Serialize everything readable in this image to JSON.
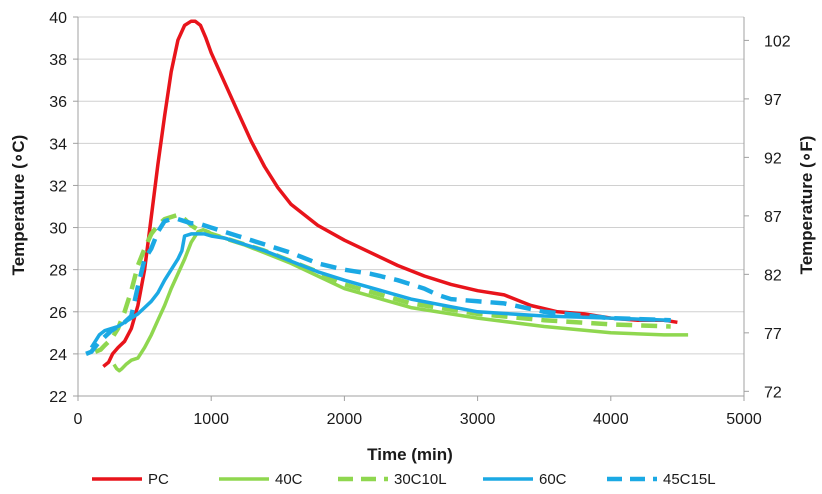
{
  "chart_data": {
    "type": "line",
    "xlabel": "Time (min)",
    "ylabel": "Temperature (∘C)",
    "y2label": "Temperature (∘F)",
    "xlim": [
      0,
      5000
    ],
    "ylim": [
      22,
      40
    ],
    "y2lim": [
      71.6,
      104
    ],
    "x_ticks": [
      0,
      1000,
      2000,
      3000,
      4000,
      5000
    ],
    "y_ticks": [
      22,
      24,
      26,
      28,
      30,
      32,
      34,
      36,
      38,
      40
    ],
    "y2_ticks": [
      72,
      77,
      82,
      87,
      92,
      97,
      102
    ],
    "grid": "horizontal",
    "legend_position": "bottom",
    "series": [
      {
        "name": "PC",
        "color": "#e8141b",
        "style": "solid",
        "x": [
          190,
          230,
          260,
          300,
          350,
          400,
          450,
          500,
          560,
          600,
          650,
          700,
          750,
          800,
          850,
          880,
          920,
          960,
          1000,
          1100,
          1200,
          1300,
          1400,
          1500,
          1600,
          1800,
          2000,
          2200,
          2400,
          2600,
          2800,
          3000,
          3200,
          3400,
          3600,
          3800,
          4000,
          4200,
          4400,
          4500
        ],
        "y": [
          23.4,
          23.6,
          24.0,
          24.3,
          24.6,
          25.2,
          26.3,
          28.0,
          31.0,
          33.0,
          35.3,
          37.4,
          38.9,
          39.6,
          39.8,
          39.8,
          39.6,
          39.0,
          38.3,
          36.9,
          35.5,
          34.1,
          32.9,
          31.9,
          31.1,
          30.1,
          29.4,
          28.8,
          28.2,
          27.7,
          27.3,
          27.0,
          26.8,
          26.3,
          26.0,
          25.9,
          25.7,
          25.6,
          25.6,
          25.5
        ]
      },
      {
        "name": "40C",
        "color": "#8fd74f",
        "style": "solid",
        "x": [
          270,
          290,
          310,
          330,
          360,
          400,
          450,
          500,
          550,
          600,
          650,
          700,
          750,
          800,
          850,
          900,
          940,
          980,
          1000,
          1200,
          1400,
          1600,
          1800,
          2000,
          2500,
          3000,
          3500,
          4000,
          4400,
          4580
        ],
        "y": [
          23.5,
          23.3,
          23.2,
          23.3,
          23.5,
          23.7,
          23.8,
          24.3,
          24.9,
          25.6,
          26.3,
          27.1,
          27.8,
          28.5,
          29.3,
          29.8,
          29.9,
          29.8,
          29.7,
          29.3,
          28.8,
          28.3,
          27.7,
          27.1,
          26.2,
          25.7,
          25.3,
          25.0,
          24.9,
          24.9
        ]
      },
      {
        "name": "30C10L",
        "color": "#8fd74f",
        "style": "dashed",
        "x": [
          130,
          170,
          200,
          250,
          300,
          350,
          400,
          450,
          500,
          550,
          600,
          650,
          700,
          750,
          800,
          850,
          900,
          950,
          1000,
          1200,
          1400,
          1600,
          1800,
          2000,
          2500,
          3000,
          3500,
          4000,
          4450
        ],
        "y": [
          24.1,
          24.2,
          24.4,
          24.7,
          25.2,
          26.0,
          27.0,
          28.2,
          29.0,
          29.7,
          30.1,
          30.4,
          30.5,
          30.6,
          30.4,
          30.1,
          29.9,
          29.8,
          29.7,
          29.3,
          28.9,
          28.4,
          27.9,
          27.3,
          26.4,
          25.9,
          25.6,
          25.4,
          25.3
        ]
      },
      {
        "name": "60C",
        "color": "#1ba9e4",
        "style": "solid",
        "x": [
          100,
          130,
          160,
          200,
          250,
          300,
          350,
          400,
          450,
          500,
          550,
          600,
          650,
          700,
          750,
          780,
          800,
          850,
          900,
          950,
          1000,
          1100,
          1200,
          1400,
          1600,
          1800,
          2000,
          2500,
          3000,
          3500,
          4000,
          4450
        ],
        "y": [
          24.3,
          24.6,
          24.9,
          25.1,
          25.2,
          25.3,
          25.5,
          25.7,
          25.9,
          26.2,
          26.5,
          26.9,
          27.5,
          28.0,
          28.5,
          28.9,
          29.6,
          29.7,
          29.7,
          29.7,
          29.6,
          29.5,
          29.3,
          28.9,
          28.4,
          27.9,
          27.5,
          26.6,
          26.0,
          25.8,
          25.7,
          25.6
        ]
      },
      {
        "name": "45C15L",
        "color": "#1ba9e4",
        "style": "dashed",
        "x": [
          60,
          100,
          150,
          200,
          250,
          300,
          350,
          400,
          450,
          500,
          550,
          600,
          650,
          700,
          750,
          800,
          850,
          900,
          1000,
          1100,
          1200,
          1400,
          1600,
          1800,
          2000,
          2200,
          2400,
          2600,
          2700,
          2800,
          3000,
          3200,
          3500,
          4000,
          4450
        ],
        "y": [
          24.0,
          24.1,
          24.5,
          24.8,
          25.1,
          25.3,
          25.5,
          25.8,
          27.2,
          28.5,
          29.0,
          29.8,
          30.3,
          30.4,
          30.4,
          30.3,
          30.2,
          30.2,
          30.0,
          29.8,
          29.6,
          29.2,
          28.8,
          28.3,
          28.0,
          27.8,
          27.5,
          27.1,
          26.8,
          26.6,
          26.5,
          26.4,
          26.0,
          25.7,
          25.6
        ]
      }
    ]
  }
}
